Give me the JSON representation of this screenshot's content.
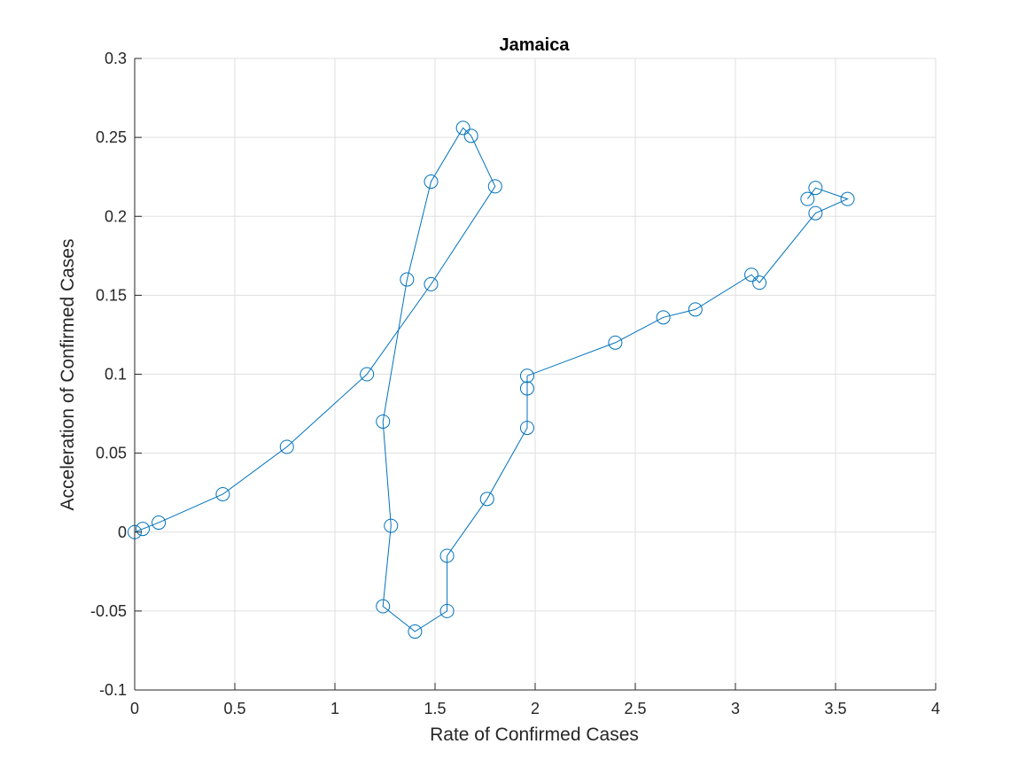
{
  "chart_data": {
    "type": "line",
    "title": "Jamaica",
    "xlabel": "Rate of Confirmed Cases",
    "ylabel": "Acceleration of Confirmed Cases",
    "xlim": [
      0,
      4
    ],
    "ylim": [
      -0.1,
      0.3
    ],
    "grid": true,
    "marker": "circle",
    "series_color": "#0072BD",
    "x_ticks": [
      {
        "value": 0,
        "label": "0"
      },
      {
        "value": 0.5,
        "label": "0.5"
      },
      {
        "value": 1,
        "label": "1"
      },
      {
        "value": 1.5,
        "label": "1.5"
      },
      {
        "value": 2,
        "label": "2"
      },
      {
        "value": 2.5,
        "label": "2.5"
      },
      {
        "value": 3,
        "label": "3"
      },
      {
        "value": 3.5,
        "label": "3.5"
      },
      {
        "value": 4,
        "label": "4"
      }
    ],
    "y_ticks": [
      {
        "value": -0.1,
        "label": "-0.1"
      },
      {
        "value": -0.05,
        "label": "-0.05"
      },
      {
        "value": 0,
        "label": "0"
      },
      {
        "value": 0.05,
        "label": "0.05"
      },
      {
        "value": 0.1,
        "label": "0.1"
      },
      {
        "value": 0.15,
        "label": "0.15"
      },
      {
        "value": 0.2,
        "label": "0.2"
      },
      {
        "value": 0.25,
        "label": "0.25"
      },
      {
        "value": 0.3,
        "label": "0.3"
      }
    ],
    "series": [
      {
        "x": [
          0,
          0.04,
          0.12,
          0.44,
          0.76,
          1.16,
          1.48,
          1.8,
          1.68,
          1.64,
          1.48,
          1.36,
          1.24,
          1.28,
          1.24,
          1.4,
          1.56,
          1.56,
          1.76,
          1.96,
          1.96,
          1.96,
          2.4,
          2.64,
          2.8,
          3.08,
          3.12,
          3.4,
          3.56,
          3.4,
          3.36
        ],
        "y": [
          0,
          0.002,
          0.006,
          0.024,
          0.054,
          0.1,
          0.157,
          0.219,
          0.251,
          0.256,
          0.222,
          0.16,
          0.07,
          0.004,
          -0.047,
          -0.063,
          -0.05,
          -0.015,
          0.021,
          0.066,
          0.091,
          0.099,
          0.12,
          0.136,
          0.141,
          0.163,
          0.158,
          0.202,
          0.211,
          0.218,
          0.211
        ]
      }
    ]
  }
}
